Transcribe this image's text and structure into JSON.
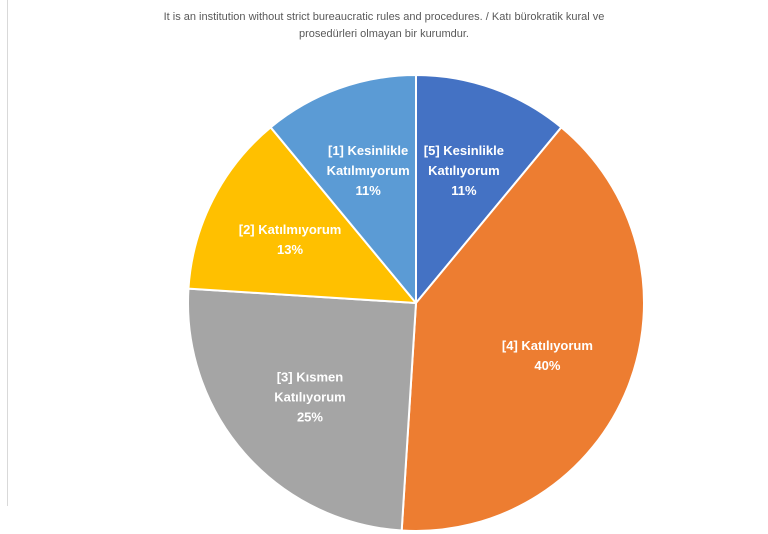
{
  "chart_data": {
    "type": "pie",
    "title_lines": [
      "It is an institution without strict bureaucratic rules and procedures.  / Katı bürokratik kural ve",
      "prosedürleri  olmayan bir kurumdur."
    ],
    "start_angle_deg": 0,
    "direction": "clockwise",
    "slices": [
      {
        "label_lines": [
          "[5] Kesinlikle",
          "Katılıyorum"
        ],
        "value": 11,
        "value_label": "11%",
        "color": "#4472c4"
      },
      {
        "label_lines": [
          "[4] Katılıyorum"
        ],
        "value": 40,
        "value_label": "40%",
        "color": "#ed7d31"
      },
      {
        "label_lines": [
          "[3] Kısmen",
          "Katılıyorum"
        ],
        "value": 25,
        "value_label": "25%",
        "color": "#a5a5a5"
      },
      {
        "label_lines": [
          "[2] Katılmıyorum"
        ],
        "value": 13,
        "value_label": "13%",
        "color": "#ffc000"
      },
      {
        "label_lines": [
          "[1] Kesinlikle",
          "Katılmıyorum"
        ],
        "value": 11,
        "value_label": "11%",
        "color": "#5b9bd5"
      }
    ]
  }
}
